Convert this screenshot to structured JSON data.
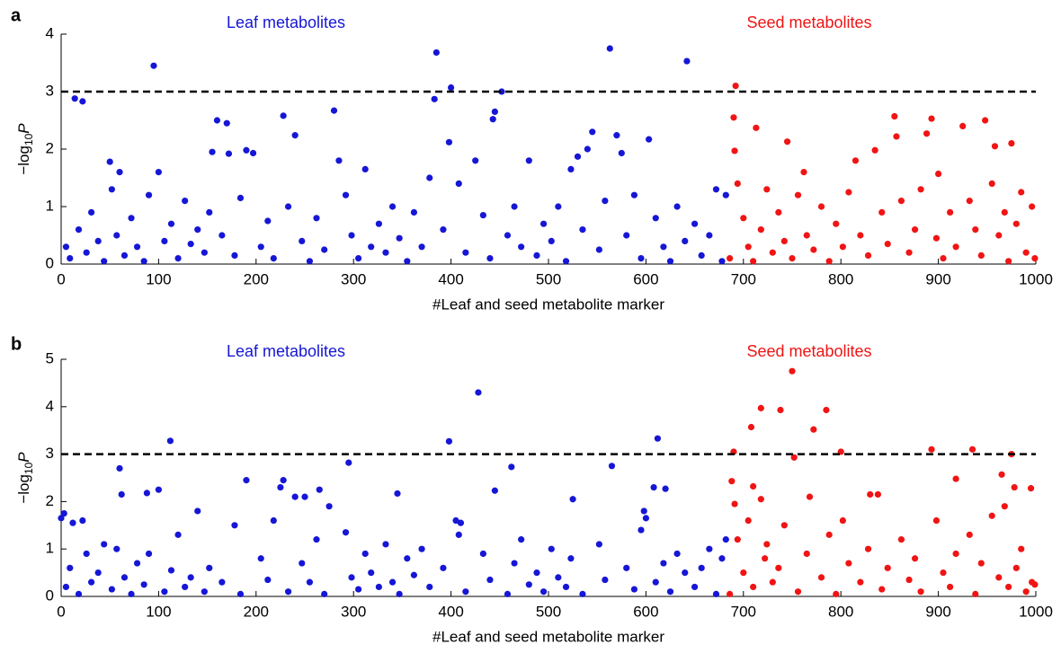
{
  "chart_data": [
    {
      "type": "scatter",
      "label": "a",
      "xlabel": "#Leaf and seed metabolite marker",
      "ylabel": [
        "−log",
        "10",
        "P"
      ],
      "xlim": [
        0,
        1000
      ],
      "xticks": [
        0,
        100,
        200,
        300,
        400,
        500,
        600,
        700,
        800,
        900,
        1000
      ],
      "ylim": [
        0,
        4
      ],
      "yticks": [
        0,
        1,
        2,
        3,
        4
      ],
      "threshold": 3,
      "series": [
        {
          "name": "Leaf metabolites",
          "color": "#1616d6",
          "x": [
            95,
            14,
            22,
            385,
            400,
            383,
            563,
            642,
            452,
            445,
            443,
            160,
            170,
            228,
            240,
            280,
            398,
            570,
            603,
            545,
            190,
            197,
            172,
            155,
            50,
            60,
            100,
            285,
            425,
            540,
            530,
            575,
            5,
            9,
            18,
            26,
            31,
            38,
            44,
            52,
            57,
            65,
            72,
            78,
            85,
            90,
            106,
            113,
            120,
            127,
            133,
            140,
            147,
            152,
            165,
            178,
            184,
            205,
            212,
            218,
            233,
            247,
            255,
            262,
            270,
            292,
            298,
            305,
            312,
            318,
            326,
            333,
            340,
            347,
            355,
            362,
            370,
            378,
            392,
            408,
            415,
            433,
            440,
            458,
            465,
            472,
            480,
            488,
            495,
            503,
            510,
            518,
            523,
            535,
            552,
            558,
            580,
            588,
            595,
            610,
            618,
            625,
            632,
            640,
            650,
            657,
            665,
            672,
            678,
            682
          ],
          "y": [
            3.45,
            2.88,
            2.83,
            3.68,
            3.07,
            2.87,
            3.75,
            3.53,
            3.0,
            2.65,
            2.52,
            2.5,
            2.45,
            2.58,
            2.24,
            2.67,
            2.12,
            2.24,
            2.17,
            2.3,
            1.98,
            1.93,
            1.92,
            1.95,
            1.78,
            1.6,
            1.6,
            1.8,
            1.8,
            2.0,
            1.87,
            1.93,
            0.3,
            0.1,
            0.6,
            0.2,
            0.9,
            0.4,
            0.05,
            1.3,
            0.5,
            0.15,
            0.8,
            0.3,
            0.05,
            1.2,
            0.4,
            0.7,
            0.1,
            1.1,
            0.35,
            0.6,
            0.2,
            0.9,
            0.5,
            0.15,
            1.15,
            0.3,
            0.75,
            0.1,
            1.0,
            0.4,
            0.05,
            0.8,
            0.25,
            1.2,
            0.5,
            0.1,
            1.65,
            0.3,
            0.7,
            0.2,
            1.0,
            0.45,
            0.05,
            0.9,
            0.3,
            1.5,
            0.6,
            1.4,
            0.2,
            0.85,
            0.1,
            0.5,
            1.0,
            0.3,
            1.8,
            0.15,
            0.7,
            0.4,
            1.0,
            0.05,
            1.65,
            0.6,
            0.25,
            1.1,
            0.5,
            1.2,
            0.1,
            0.8,
            0.3,
            0.05,
            1.0,
            0.4,
            0.7,
            0.15,
            0.5,
            1.3,
            0.05,
            1.2
          ]
        },
        {
          "name": "Seed metabolites",
          "color": "#f01414",
          "x": [
            692,
            690,
            713,
            745,
            855,
            893,
            888,
            925,
            948,
            975,
            958,
            835,
            857,
            815,
            691,
            762,
            900,
            686,
            694,
            700,
            705,
            710,
            718,
            724,
            730,
            736,
            742,
            750,
            756,
            765,
            772,
            780,
            788,
            795,
            802,
            808,
            820,
            828,
            842,
            848,
            862,
            870,
            876,
            882,
            898,
            905,
            912,
            918,
            932,
            938,
            944,
            955,
            962,
            968,
            972,
            980,
            985,
            990,
            996,
            999
          ],
          "y": [
            3.1,
            2.55,
            2.37,
            2.13,
            2.57,
            2.53,
            2.27,
            2.4,
            2.5,
            2.1,
            2.05,
            1.98,
            2.22,
            1.8,
            1.97,
            1.6,
            1.57,
            0.1,
            1.4,
            0.8,
            0.3,
            0.05,
            0.6,
            1.3,
            0.2,
            0.9,
            0.4,
            0.1,
            1.2,
            0.5,
            0.25,
            1.0,
            0.05,
            0.7,
            0.3,
            1.25,
            0.5,
            0.15,
            0.9,
            0.35,
            1.1,
            0.2,
            0.6,
            1.3,
            0.45,
            0.1,
            0.9,
            0.3,
            1.1,
            0.6,
            0.15,
            1.4,
            0.5,
            0.9,
            0.05,
            0.7,
            1.25,
            0.2,
            1.0,
            0.1
          ]
        }
      ]
    },
    {
      "type": "scatter",
      "label": "b",
      "xlabel": "#Leaf and seed metabolite marker",
      "ylabel": [
        "−log",
        "10",
        "P"
      ],
      "xlim": [
        0,
        1000
      ],
      "xticks": [
        0,
        100,
        200,
        300,
        400,
        500,
        600,
        700,
        800,
        900,
        1000
      ],
      "ylim": [
        0,
        5
      ],
      "yticks": [
        0,
        1,
        2,
        3,
        4,
        5
      ],
      "threshold": 3,
      "series": [
        {
          "name": "Leaf metabolites",
          "color": "#1616d6",
          "x": [
            112,
            398,
            428,
            612,
            60,
            565,
            462,
            295,
            88,
            100,
            190,
            228,
            225,
            265,
            345,
            445,
            525,
            608,
            620,
            0,
            3,
            12,
            22,
            250,
            275,
            240,
            62,
            405,
            410,
            598,
            600,
            5,
            9,
            18,
            26,
            31,
            38,
            44,
            52,
            57,
            65,
            72,
            78,
            85,
            90,
            106,
            113,
            120,
            127,
            133,
            140,
            147,
            152,
            165,
            178,
            184,
            205,
            212,
            218,
            233,
            247,
            255,
            262,
            270,
            292,
            298,
            305,
            312,
            318,
            326,
            333,
            340,
            347,
            355,
            362,
            370,
            378,
            392,
            408,
            415,
            433,
            440,
            458,
            465,
            472,
            480,
            488,
            495,
            503,
            510,
            518,
            523,
            535,
            552,
            558,
            580,
            588,
            595,
            610,
            618,
            625,
            632,
            640,
            650,
            657,
            665,
            672,
            678,
            682
          ],
          "y": [
            3.28,
            3.27,
            4.3,
            3.33,
            2.7,
            2.75,
            2.73,
            2.82,
            2.18,
            2.25,
            2.45,
            2.45,
            2.3,
            2.25,
            2.17,
            2.23,
            2.05,
            2.3,
            2.27,
            1.65,
            1.75,
            1.55,
            1.6,
            2.1,
            1.9,
            2.1,
            2.15,
            1.6,
            1.55,
            1.8,
            1.65,
            0.2,
            0.6,
            0.05,
            0.9,
            0.3,
            0.5,
            1.1,
            0.15,
            1.0,
            0.4,
            0.05,
            0.7,
            0.25,
            0.9,
            0.1,
            0.55,
            1.3,
            0.2,
            0.4,
            1.8,
            0.1,
            0.6,
            0.3,
            1.5,
            0.05,
            0.8,
            0.35,
            1.6,
            0.1,
            0.7,
            0.3,
            1.2,
            0.05,
            1.35,
            0.4,
            0.15,
            0.9,
            0.5,
            0.2,
            1.1,
            0.3,
            0.05,
            0.8,
            0.45,
            1.0,
            0.2,
            0.6,
            1.3,
            0.1,
            0.9,
            0.35,
            0.05,
            0.7,
            1.2,
            0.25,
            0.5,
            0.1,
            1.0,
            0.4,
            0.2,
            0.8,
            0.05,
            1.1,
            0.35,
            0.6,
            0.15,
            1.4,
            0.3,
            0.7,
            0.1,
            0.9,
            0.5,
            0.2,
            0.6,
            1.0,
            0.05,
            0.8,
            1.2
          ]
        },
        {
          "name": "Seed metabolites",
          "color": "#f01414",
          "x": [
            750,
            718,
            738,
            785,
            772,
            708,
            752,
            690,
            893,
            935,
            800,
            975,
            688,
            710,
            718,
            768,
            830,
            838,
            918,
            965,
            978,
            995,
            691,
            686,
            694,
            700,
            705,
            710,
            722,
            724,
            730,
            736,
            742,
            756,
            765,
            780,
            788,
            795,
            802,
            808,
            820,
            828,
            842,
            848,
            862,
            870,
            876,
            882,
            898,
            905,
            912,
            918,
            932,
            938,
            944,
            955,
            962,
            968,
            972,
            980,
            985,
            990,
            996,
            999
          ],
          "y": [
            4.75,
            3.97,
            3.93,
            3.93,
            3.52,
            3.57,
            2.93,
            3.05,
            3.1,
            3.1,
            3.05,
            3.0,
            2.43,
            2.32,
            2.05,
            2.1,
            2.15,
            2.15,
            2.48,
            2.57,
            2.3,
            2.28,
            1.95,
            0.05,
            1.2,
            0.5,
            1.6,
            0.2,
            0.8,
            1.1,
            0.3,
            0.6,
            1.5,
            0.1,
            0.9,
            0.4,
            1.3,
            0.05,
            1.6,
            0.7,
            0.3,
            1.0,
            0.15,
            0.6,
            1.2,
            0.35,
            0.8,
            0.1,
            1.6,
            0.5,
            0.2,
            0.9,
            1.3,
            0.05,
            0.7,
            1.7,
            0.4,
            1.9,
            0.2,
            0.6,
            1.0,
            0.1,
            0.3,
            0.25
          ]
        }
      ]
    }
  ]
}
